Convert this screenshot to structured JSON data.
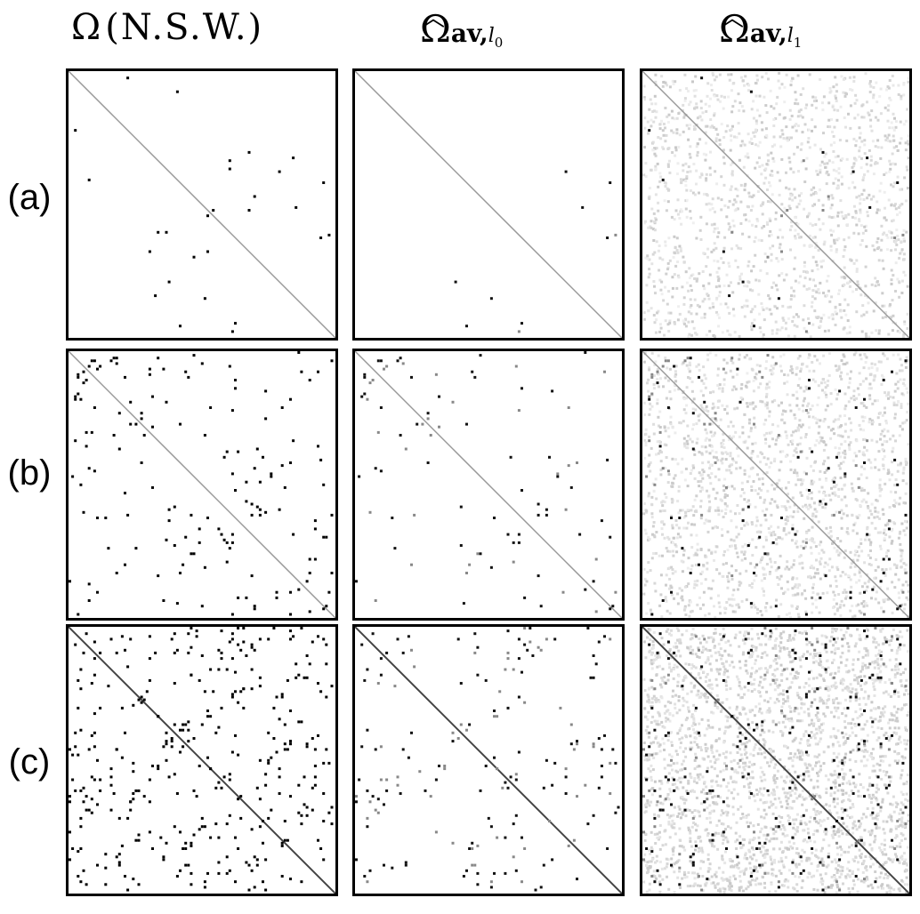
{
  "columns": [
    {
      "symbol": "Ω",
      "suffix": "(N.S.W.)"
    },
    {
      "symbol": "Ω",
      "subscript_main": "av,",
      "subscript_sub": "l",
      "subscript_index": "0"
    },
    {
      "symbol": "Ω",
      "subscript_main": "av,",
      "subscript_sub": "l",
      "subscript_index": "1"
    }
  ],
  "rows": [
    {
      "label": "(a)"
    },
    {
      "label": "(b)"
    },
    {
      "label": "(c)"
    }
  ]
}
